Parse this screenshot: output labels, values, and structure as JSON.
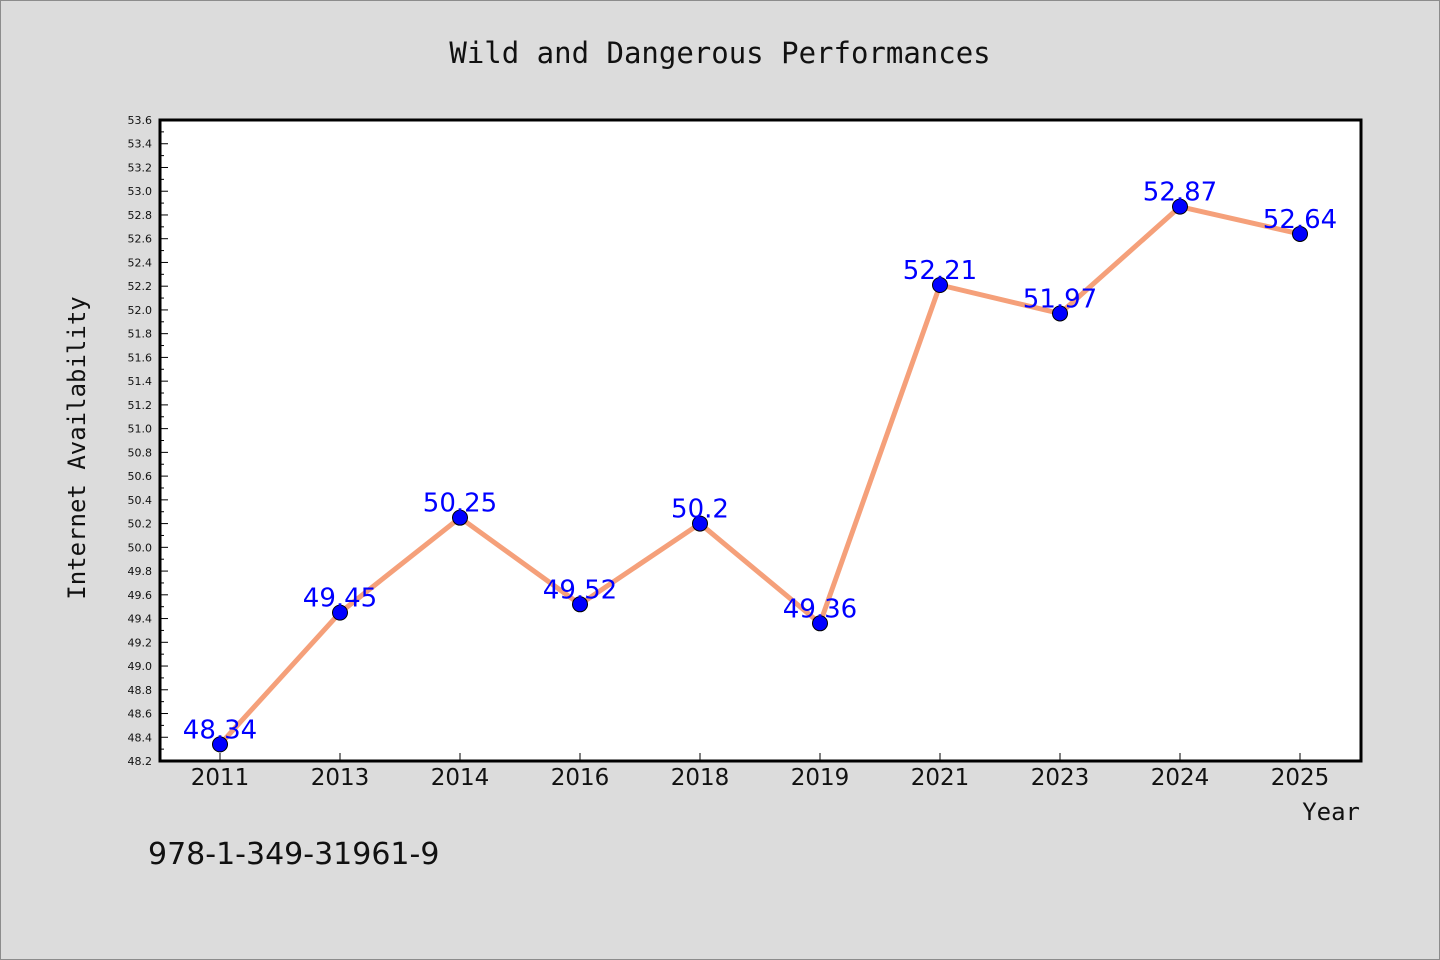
{
  "footer_code": "978-1-349-31961-9",
  "chart_data": {
    "type": "line",
    "title": "Wild and Dangerous Performances",
    "xlabel": "Year",
    "ylabel": "Internet Availability",
    "categories": [
      "2011",
      "2013",
      "2014",
      "2016",
      "2018",
      "2019",
      "2021",
      "2023",
      "2024",
      "2025"
    ],
    "series": [
      {
        "values": [
          48.34,
          49.45,
          50.25,
          49.52,
          50.2,
          49.36,
          52.21,
          51.97,
          52.87,
          52.64
        ],
        "data_labels": [
          "48.34",
          "49.45",
          "50.25",
          "49.52",
          "50.2",
          "49.36",
          "52.21",
          "51.97",
          "52.87",
          "52.64"
        ]
      }
    ],
    "ylim": [
      48.2,
      53.6
    ],
    "yticks": [
      "48.2",
      "48.4",
      "48.6",
      "48.8",
      "49.0",
      "49.2",
      "49.4",
      "49.6",
      "49.8",
      "50.0",
      "50.2",
      "50.4",
      "50.6",
      "50.8",
      "51.0",
      "51.2",
      "51.4",
      "51.6",
      "51.8",
      "52.0",
      "52.2",
      "52.4",
      "52.6",
      "52.8",
      "53.0",
      "53.2",
      "53.4",
      "53.6"
    ],
    "grid": false,
    "legend": "none",
    "colors": {
      "line": "#f5a07a",
      "marker": "#0000ff",
      "data_label": "#0000ff",
      "background": "#dcdcdc",
      "plot_background": "#ffffff"
    }
  }
}
